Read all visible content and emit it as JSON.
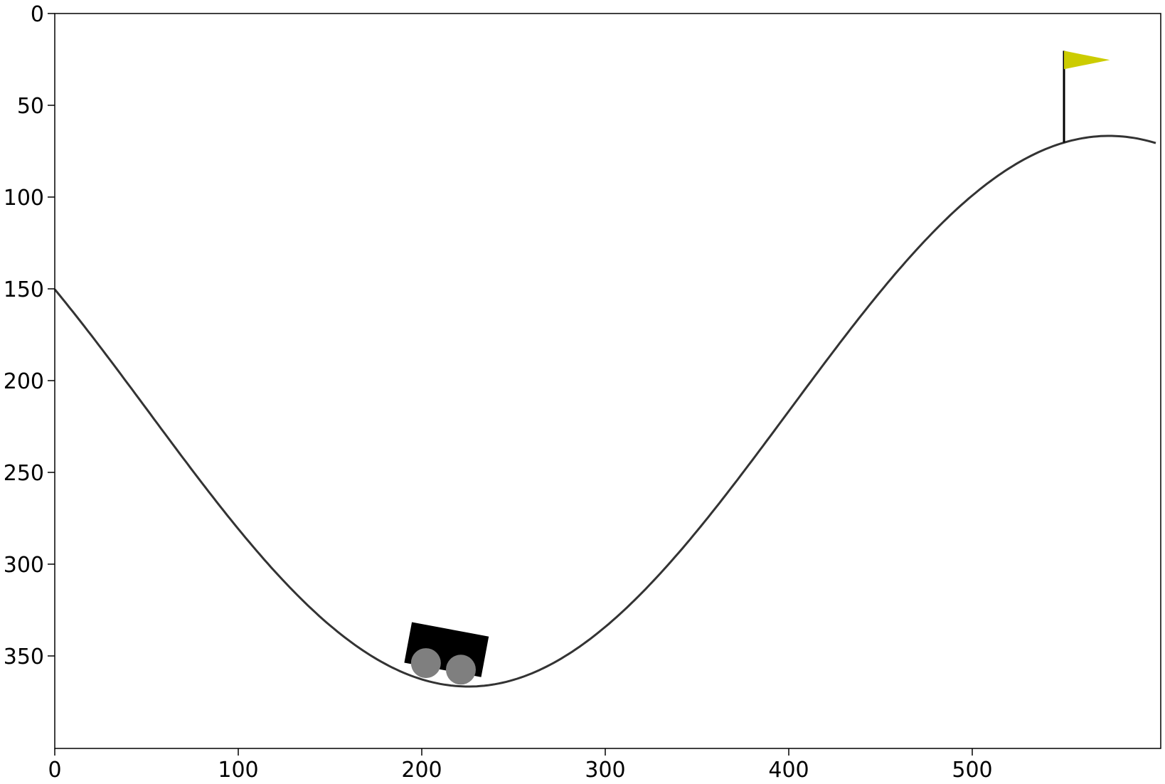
{
  "scene": {
    "name": "mountain-car",
    "colors": {
      "background": "#ffffff",
      "track": "#333333",
      "car_body": "#000000",
      "wheel": "#7f7f7f",
      "flag": "#cccc00",
      "flagpole": "#000000",
      "axes": "#000000"
    },
    "car_position_x": 210,
    "flag_position_x": 550
  },
  "axes": {
    "x_range": [
      0,
      600
    ],
    "y_range": [
      400,
      0
    ],
    "x_ticks": [
      "0",
      "100",
      "200",
      "300",
      "400",
      "500"
    ],
    "y_ticks": [
      "0",
      "50",
      "100",
      "150",
      "200",
      "250",
      "300",
      "350"
    ]
  }
}
